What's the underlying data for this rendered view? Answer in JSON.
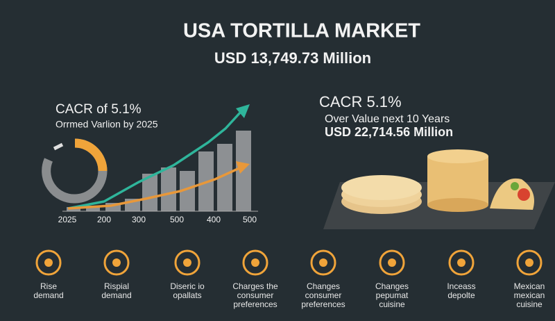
{
  "header": {
    "title": "USA TORTILLA MARKET",
    "subtitle": "USD 13,749.73 Million"
  },
  "left_panel": {
    "heading": "CACR of 5.1%",
    "caption": "Orrmed Varlion by 2025",
    "axis_labels": [
      "2025",
      "200",
      "300",
      "500",
      "400",
      "500"
    ]
  },
  "right_panel": {
    "heading": "CACR 5.1%",
    "line1": "Over Value next 10 Years",
    "line2": "USD 22,714.56 Million"
  },
  "icons": [
    {
      "lines": [
        "Rise",
        "demand"
      ]
    },
    {
      "lines": [
        "Rispial",
        "demand"
      ]
    },
    {
      "lines": [
        "Diseric io",
        "opallats"
      ]
    },
    {
      "lines": [
        "Charges the",
        "consumer",
        "preferences"
      ]
    },
    {
      "lines": [
        "Changes",
        "consumer",
        "preferences"
      ]
    },
    {
      "lines": [
        "Changes",
        "pepumat",
        "cuisine"
      ]
    },
    {
      "lines": [
        "Inceass",
        "depolte"
      ]
    },
    {
      "lines": [
        "Mexican",
        "mexican",
        "cuisine"
      ]
    }
  ]
}
